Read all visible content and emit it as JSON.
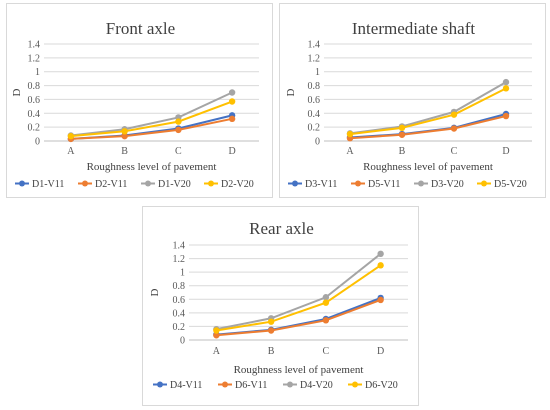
{
  "chart_data": [
    {
      "type": "line",
      "title": "Front axle",
      "xlabel": "Roughness level  of pavement",
      "ylabel": "D",
      "categories": [
        "A",
        "B",
        "C",
        "D"
      ],
      "ylim": [
        0,
        1.4
      ],
      "yticks": [
        "0",
        "0.2",
        "0.4",
        "0.6",
        "0.8",
        "1",
        "1.2",
        "1.4"
      ],
      "grid": true,
      "legend": "bottom",
      "series": [
        {
          "name": "D1-V11",
          "color": "#4472C4",
          "values": [
            0.03,
            0.08,
            0.18,
            0.37
          ]
        },
        {
          "name": "D2-V11",
          "color": "#ED7D31",
          "values": [
            0.03,
            0.07,
            0.16,
            0.32
          ]
        },
        {
          "name": "D1-V20",
          "color": "#A5A5A5",
          "values": [
            0.08,
            0.17,
            0.34,
            0.7
          ]
        },
        {
          "name": "D2-V20",
          "color": "#FFC000",
          "values": [
            0.07,
            0.14,
            0.28,
            0.57
          ]
        }
      ]
    },
    {
      "type": "line",
      "title": "Intermediate shaft",
      "xlabel": "Roughness level  of pavement",
      "ylabel": "D",
      "categories": [
        "A",
        "B",
        "C",
        "D"
      ],
      "ylim": [
        0,
        1.4
      ],
      "yticks": [
        "0",
        "0.2",
        "0.4",
        "0.6",
        "0.8",
        "1",
        "1.2",
        "1.4"
      ],
      "grid": true,
      "legend": "bottom",
      "series": [
        {
          "name": "D3-V11",
          "color": "#4472C4",
          "values": [
            0.05,
            0.1,
            0.19,
            0.39
          ]
        },
        {
          "name": "D5-V11",
          "color": "#ED7D31",
          "values": [
            0.04,
            0.09,
            0.18,
            0.36
          ]
        },
        {
          "name": "D3-V20",
          "color": "#A5A5A5",
          "values": [
            0.11,
            0.21,
            0.42,
            0.85
          ]
        },
        {
          "name": "D5-V20",
          "color": "#FFC000",
          "values": [
            0.1,
            0.19,
            0.38,
            0.76
          ]
        }
      ]
    },
    {
      "type": "line",
      "title": "Rear axle",
      "xlabel": "Roughness level  of pavement",
      "ylabel": "D",
      "categories": [
        "A",
        "B",
        "C",
        "D"
      ],
      "ylim": [
        0,
        1.4
      ],
      "yticks": [
        "0",
        "0.2",
        "0.4",
        "0.6",
        "0.8",
        "1",
        "1.2",
        "1.4"
      ],
      "grid": true,
      "legend": "bottom",
      "series": [
        {
          "name": "D4-V11",
          "color": "#4472C4",
          "values": [
            0.08,
            0.15,
            0.31,
            0.62
          ]
        },
        {
          "name": "D6-V11",
          "color": "#ED7D31",
          "values": [
            0.07,
            0.14,
            0.29,
            0.59
          ]
        },
        {
          "name": "D4-V20",
          "color": "#A5A5A5",
          "values": [
            0.16,
            0.32,
            0.63,
            1.27
          ]
        },
        {
          "name": "D6-V20",
          "color": "#FFC000",
          "values": [
            0.14,
            0.27,
            0.55,
            1.1
          ]
        }
      ]
    }
  ]
}
